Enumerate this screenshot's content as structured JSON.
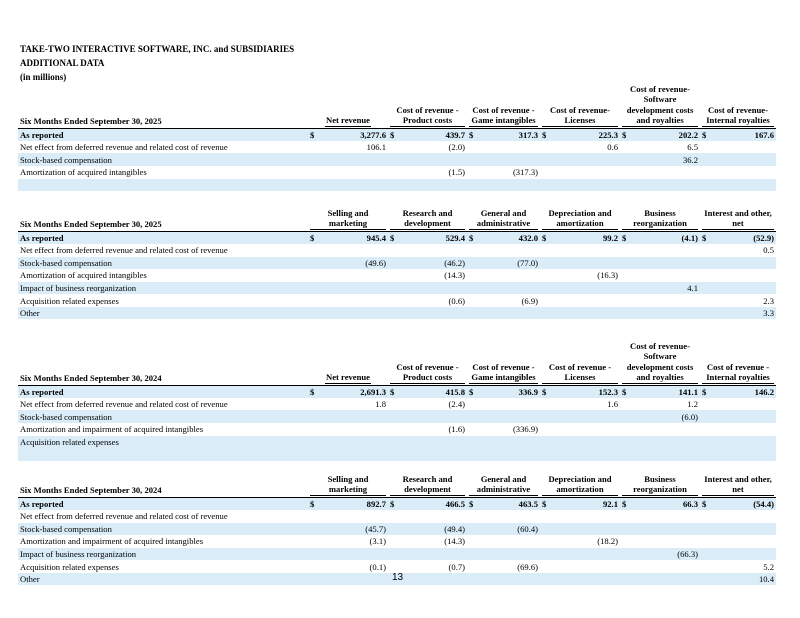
{
  "header": {
    "company": "TAKE-TWO INTERACTIVE SOFTWARE, INC. and SUBSIDIARIES",
    "subtitle": "ADDITIONAL DATA",
    "units": "(in millions)"
  },
  "tables": [
    {
      "period": "Six Months Ended September 30, 2025",
      "columns": [
        "Net revenue",
        "Cost of revenue - Product costs",
        "Cost of revenue - Game intangibles",
        "Cost of revenue- Licenses",
        "Cost of revenue- Software development costs and royalties",
        "Cost of revenue- Internal royalties"
      ],
      "rows": [
        {
          "label": "As reported",
          "values": [
            "3,277.6",
            "439.7",
            "317.3",
            "225.3",
            "202.2",
            "167.6"
          ]
        },
        {
          "label": "Net effect from deferred revenue and related cost of revenue",
          "values": [
            "106.1",
            "(2.0)",
            "",
            "0.6",
            "6.5",
            ""
          ]
        },
        {
          "label": "Stock-based compensation",
          "values": [
            "",
            "",
            "",
            "",
            "36.2",
            ""
          ]
        },
        {
          "label": "Amortization of acquired intangibles",
          "values": [
            "",
            "(1.5)",
            "(317.3)",
            "",
            "",
            ""
          ]
        },
        {
          "label": "",
          "values": [
            "",
            "",
            "",
            "",
            "",
            ""
          ]
        }
      ]
    },
    {
      "period": "Six Months Ended September 30, 2025",
      "columns": [
        "Selling and marketing",
        "Research and development",
        "General and administrative",
        "Depreciation and amortization",
        "Business reorganization",
        "Interest and other, net"
      ],
      "rows": [
        {
          "label": "As reported",
          "values": [
            "945.4",
            "529.4",
            "432.0",
            "99.2",
            "(4.1)",
            "(52.9)"
          ]
        },
        {
          "label": "Net effect from deferred revenue and related cost of revenue",
          "values": [
            "",
            "",
            "",
            "",
            "",
            "0.5"
          ]
        },
        {
          "label": "Stock-based compensation",
          "values": [
            "(49.6)",
            "(46.2)",
            "(77.0)",
            "",
            "",
            ""
          ]
        },
        {
          "label": "Amortization of acquired intangibles",
          "values": [
            "",
            "(14.3)",
            "",
            "(16.3)",
            "",
            ""
          ]
        },
        {
          "label": "Impact of business reorganization",
          "values": [
            "",
            "",
            "",
            "",
            "4.1",
            ""
          ]
        },
        {
          "label": "Acquisition related expenses",
          "values": [
            "",
            "(0.6)",
            "(6.9)",
            "",
            "",
            "2.3"
          ]
        },
        {
          "label": "Other",
          "values": [
            "",
            "",
            "",
            "",
            "",
            "3.3"
          ]
        }
      ]
    },
    {
      "period": "Six Months Ended September 30, 2024",
      "columns": [
        "Net revenue",
        "Cost of revenue - Product costs",
        "Cost of revenue - Game intangibles",
        "Cost of revenue - Licenses",
        "Cost of revenue- Software development costs and royalties",
        "Cost of revenue - Internal royalties"
      ],
      "rows": [
        {
          "label": "As reported",
          "values": [
            "2,691.3",
            "415.8",
            "336.9",
            "152.3",
            "141.1",
            "146.2"
          ]
        },
        {
          "label": "Net effect from deferred revenue and related cost of revenue",
          "values": [
            "1.8",
            "(2.4)",
            "",
            "1.6",
            "1.2",
            ""
          ]
        },
        {
          "label": "Stock-based compensation",
          "values": [
            "",
            "",
            "",
            "",
            "(6.0)",
            ""
          ]
        },
        {
          "label": "Amortization and impairment of acquired intangibles",
          "values": [
            "",
            "(1.6)",
            "(336.9)",
            "",
            "",
            ""
          ]
        },
        {
          "label": "Acquisition related expenses",
          "values": [
            "",
            "",
            "",
            "",
            "",
            ""
          ]
        },
        {
          "label": "",
          "values": [
            "",
            "",
            "",
            "",
            "",
            ""
          ]
        }
      ]
    },
    {
      "period": "Six Months Ended September 30, 2024",
      "columns": [
        "Selling and marketing",
        "Research and development",
        "General and administrative",
        "Depreciation and amortization",
        "Business reorganization",
        "Interest and other, net"
      ],
      "rows": [
        {
          "label": "As reported",
          "values": [
            "892.7",
            "466.5",
            "463.5",
            "92.1",
            "66.3",
            "(54.4)"
          ]
        },
        {
          "label": "Net effect from deferred revenue and related cost of revenue",
          "values": [
            "",
            "",
            "",
            "",
            "",
            ""
          ]
        },
        {
          "label": "Stock-based compensation",
          "values": [
            "(45.7)",
            "(49.4)",
            "(60.4)",
            "",
            "",
            ""
          ]
        },
        {
          "label": "Amortization and impairment of acquired intangibles",
          "values": [
            "(3.1)",
            "(14.3)",
            "",
            "(18.2)",
            "",
            ""
          ]
        },
        {
          "label": "Impact of business reorganization",
          "values": [
            "",
            "",
            "",
            "",
            "(66.3)",
            ""
          ]
        },
        {
          "label": "Acquisition related expenses",
          "values": [
            "(0.1)",
            "(0.7)",
            "(69.6)",
            "",
            "",
            "5.2"
          ]
        },
        {
          "label": "Other",
          "values": [
            "",
            "",
            "",
            "",
            "",
            "10.4"
          ]
        }
      ]
    }
  ],
  "currency_symbol": "$",
  "page_number": "13",
  "colors": {
    "row_shade": "#d9ecf8"
  }
}
